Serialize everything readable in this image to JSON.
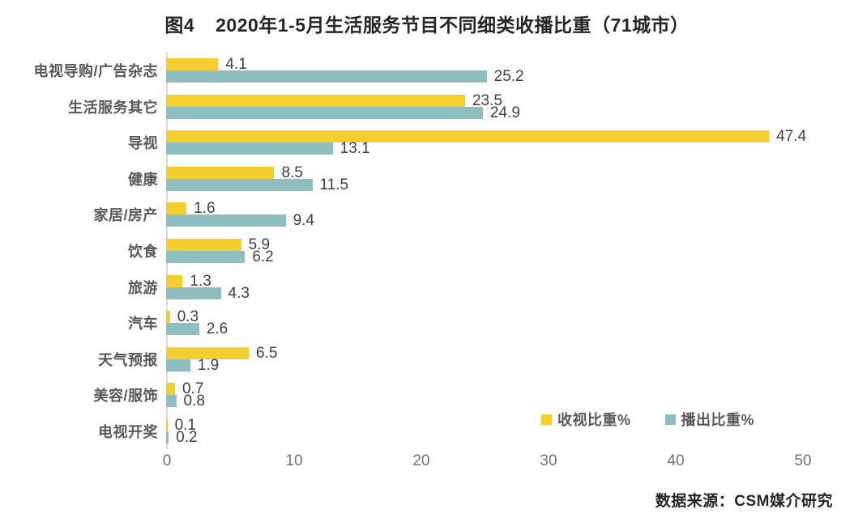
{
  "header": {
    "figure_label": "图4",
    "title": "2020年1-5月生活服务节目不同细类收播比重（71城市）"
  },
  "chart_data": {
    "type": "bar",
    "orientation": "horizontal",
    "title": "2020年1-5月生活服务节目不同细类收播比重（71城市）",
    "categories": [
      "电视导购/广告杂志",
      "生活服务其它",
      "导视",
      "健康",
      "家居/房产",
      "饮食",
      "旅游",
      "汽车",
      "天气预报",
      "美容/服饰",
      "电视开奖"
    ],
    "series": [
      {
        "name": "收视比重%",
        "color": "#f4cd2f",
        "values": [
          4.1,
          23.5,
          47.4,
          8.5,
          1.6,
          5.9,
          1.3,
          0.3,
          6.5,
          0.7,
          0.1
        ]
      },
      {
        "name": "播出比重%",
        "color": "#8fbec0",
        "values": [
          25.2,
          24.9,
          13.1,
          11.5,
          9.4,
          6.2,
          4.3,
          2.6,
          1.9,
          0.8,
          0.2
        ]
      }
    ],
    "xlabel": "",
    "ylabel": "",
    "xlim": [
      0,
      50
    ],
    "xticks": [
      0,
      10,
      20,
      30,
      40,
      50
    ],
    "grid": false,
    "legend_position": "bottom-right-inside",
    "value_labels": "one-decimal"
  },
  "colors": {
    "viewing_share": "#f4cd2f",
    "broadcast_share": "#8fbec0",
    "axis_line": "#d9d9d9",
    "category_text": "#595959",
    "value_text": "#404040",
    "tick_text": "#737373",
    "title_text": "#262626"
  },
  "footer": {
    "source": "数据来源：CSM媒介研究"
  }
}
